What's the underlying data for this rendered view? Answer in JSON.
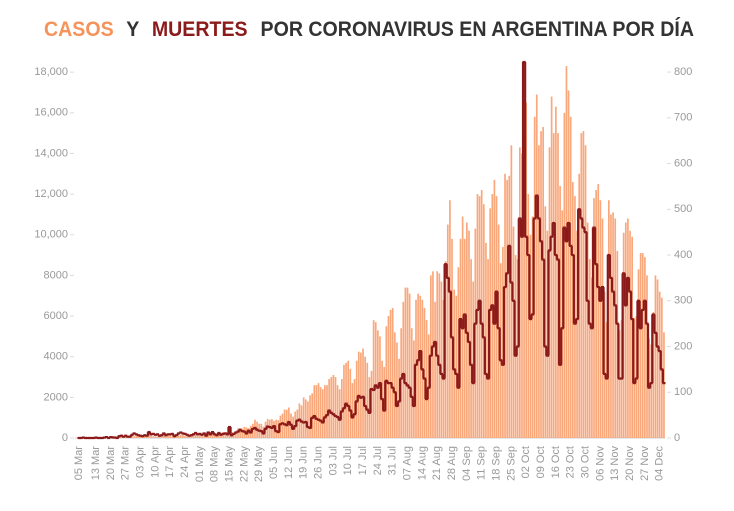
{
  "chart_data": {
    "type": "bar-step",
    "title": [
      "Y",
      "POR CORONAVIRUS EN ARGENTINA POR DÍA"
    ],
    "categories": [
      "05 Mar",
      null,
      null,
      null,
      null,
      null,
      null,
      null,
      "13 Mar",
      null,
      null,
      null,
      null,
      null,
      null,
      "20 Mar",
      null,
      null,
      null,
      null,
      null,
      null,
      "27 Mar",
      null,
      null,
      null,
      null,
      null,
      null,
      "03 Apr",
      null,
      null,
      null,
      null,
      null,
      null,
      "10 Apr",
      null,
      null,
      null,
      null,
      null,
      null,
      "17 Apr",
      null,
      null,
      null,
      null,
      null,
      null,
      "24 Apr",
      null,
      null,
      null,
      null,
      null,
      null,
      "01 May",
      null,
      null,
      null,
      null,
      null,
      null,
      "08 May",
      null,
      null,
      null,
      null,
      null,
      null,
      "15 May",
      null,
      null,
      null,
      null,
      null,
      null,
      "22 May",
      null,
      null,
      null,
      null,
      null,
      null,
      "29 May",
      null,
      null,
      null,
      null,
      null,
      null,
      "05 Jun",
      null,
      null,
      null,
      null,
      null,
      null,
      "12 Jun",
      null,
      null,
      null,
      null,
      null,
      null,
      "19 Jun",
      null,
      null,
      null,
      null,
      null,
      null,
      "26 Jun",
      null,
      null,
      null,
      null,
      null,
      null,
      "03 Jul",
      null,
      null,
      null,
      null,
      null,
      null,
      "10 Jul",
      null,
      null,
      null,
      null,
      null,
      null,
      "17 Jul",
      null,
      null,
      null,
      null,
      null,
      null,
      "24 Jul",
      null,
      null,
      null,
      null,
      null,
      null,
      "31 Jul",
      null,
      null,
      null,
      null,
      null,
      null,
      "07 Aug",
      null,
      null,
      null,
      null,
      null,
      null,
      "14 Aug",
      null,
      null,
      null,
      null,
      null,
      null,
      "21 Aug",
      null,
      null,
      null,
      null,
      null,
      null,
      "28 Aug",
      null,
      null,
      null,
      null,
      null,
      null,
      "04 Sep",
      null,
      null,
      null,
      null,
      null,
      null,
      "11 Sep",
      null,
      null,
      null,
      null,
      null,
      null,
      "18 Sep",
      null,
      null,
      null,
      null,
      null,
      null,
      "25 Sep",
      null,
      null,
      null,
      null,
      null,
      null,
      "02 Oct",
      null,
      null,
      null,
      null,
      null,
      null,
      "09 Oct",
      null,
      null,
      null,
      null,
      null,
      null,
      "16 Oct",
      null,
      null,
      null,
      null,
      null,
      null,
      "23 Oct",
      null,
      null,
      null,
      null,
      null,
      null,
      "30 Oct",
      null,
      null,
      null,
      null,
      null,
      null,
      "06 Nov",
      null,
      null,
      null,
      null,
      null,
      null,
      "13 Nov",
      null,
      null,
      null,
      null,
      null,
      null,
      "20 Nov",
      null,
      null,
      null,
      null,
      null,
      null,
      "27 Nov",
      null,
      null,
      null,
      null,
      null,
      null,
      "04 Dec",
      null,
      null
    ],
    "series": [
      {
        "name": "CASOS",
        "color": "#f9a87c",
        "title_color": "#f5935b",
        "values": [
          1,
          0,
          2,
          2,
          3,
          5,
          4,
          10,
          5,
          12,
          11,
          20,
          14,
          18,
          31,
          30,
          97,
          67,
          41,
          86,
          87,
          101,
          55,
          75,
          95,
          146,
          88,
          117,
          132,
          105,
          80,
          98,
          60,
          150,
          114,
          90,
          80,
          81,
          100,
          83,
          114,
          85,
          124,
          145,
          85,
          77,
          67,
          121,
          144,
          160,
          120,
          100,
          120,
          110,
          130,
          166,
          119,
          143,
          150,
          100,
          130,
          180,
          240,
          200,
          180,
          170,
          160,
          230,
          290,
          280,
          300,
          345,
          300,
          250,
          330,
          470,
          480,
          460,
          550,
          520,
          480,
          600,
          700,
          900,
          800,
          700,
          700,
          560,
          800,
          930,
          900,
          930,
          840,
          900,
          880,
          1100,
          1200,
          1400,
          1390,
          1500,
          1200,
          1050,
          1300,
          1400,
          1700,
          1600,
          2000,
          1900,
          1800,
          2100,
          2200,
          2600,
          2600,
          2700,
          2500,
          2400,
          2600,
          2600,
          2900,
          3000,
          3100,
          3000,
          2600,
          2400,
          2900,
          3600,
          3700,
          3800,
          3400,
          2700,
          2900,
          3800,
          4250,
          4200,
          4400,
          4000,
          3700,
          3000,
          3300,
          5800,
          5700,
          5300,
          5000,
          3800,
          3500,
          5500,
          6000,
          6300,
          6400,
          5200,
          4700,
          3900,
          5400,
          6700,
          7400,
          7400,
          7100,
          5400,
          4800,
          6800,
          7100,
          7000,
          6800,
          6400,
          5800,
          5100,
          8000,
          8200,
          6700,
          8200,
          8100,
          7700,
          6800,
          8700,
          10500,
          11700,
          9800,
          7300,
          7000,
          8400,
          9800,
          10900,
          9800,
          10600,
          10200,
          8800,
          7700,
          10300,
          12000,
          11900,
          12200,
          11500,
          9600,
          8800,
          11300,
          12000,
          12700,
          11900,
          10500,
          8600,
          9400,
          13000,
          12700,
          12900,
          14400,
          10400,
          9000,
          8800,
          14300,
          14000,
          14900,
          16500,
          12000,
          10000,
          10900,
          15800,
          16900,
          14400,
          15100,
          15300,
          11400,
          10200,
          14300,
          16800,
          15000,
          16300,
          15000,
          12400,
          11200,
          16000,
          18300,
          17100,
          15800,
          12600,
          11900,
          10200,
          13000,
          15000,
          15100,
          14400,
          10600,
          8800,
          7900,
          11800,
          12200,
          12500,
          11700,
          10800,
          7200,
          5700,
          11700,
          11000,
          11100,
          10800,
          9200,
          5300,
          5800,
          10100,
          10600,
          10800,
          10200,
          9900,
          5900,
          6000,
          8300,
          9100,
          9100,
          8900,
          8000,
          4900,
          4600,
          6200,
          8000,
          7800,
          7200,
          6900,
          5200
        ]
      },
      {
        "name": "MUERTES",
        "color": "#8b1a1a",
        "axis": "y2",
        "values": [
          0,
          0,
          1,
          0,
          0,
          0,
          0,
          0,
          1,
          0,
          0,
          0,
          1,
          2,
          0,
          2,
          1,
          1,
          0,
          4,
          5,
          3,
          5,
          3,
          3,
          7,
          10,
          8,
          6,
          5,
          4,
          6,
          5,
          13,
          8,
          9,
          7,
          8,
          5,
          6,
          10,
          6,
          8,
          8,
          9,
          4,
          6,
          10,
          12,
          10,
          9,
          7,
          5,
          6,
          8,
          11,
          8,
          9,
          7,
          10,
          5,
          12,
          8,
          13,
          8,
          6,
          11,
          7,
          9,
          10,
          8,
          24,
          6,
          9,
          12,
          14,
          18,
          15,
          14,
          10,
          16,
          12,
          20,
          22,
          18,
          16,
          15,
          10,
          20,
          25,
          24,
          22,
          26,
          15,
          13,
          30,
          32,
          30,
          28,
          35,
          29,
          20,
          26,
          38,
          40,
          36,
          34,
          35,
          24,
          22,
          44,
          48,
          42,
          40,
          38,
          34,
          45,
          50,
          60,
          55,
          52,
          48,
          46,
          40,
          58,
          65,
          75,
          70,
          60,
          45,
          52,
          80,
          92,
          88,
          90,
          70,
          62,
          55,
          107,
          105,
          115,
          110,
          120,
          85,
          60,
          125,
          120,
          120,
          110,
          100,
          70,
          80,
          130,
          140,
          120,
          115,
          110,
          90,
          70,
          160,
          170,
          190,
          150,
          130,
          85,
          110,
          180,
          200,
          210,
          180,
          160,
          140,
          130,
          380,
          350,
          320,
          220,
          150,
          140,
          110,
          260,
          240,
          270,
          230,
          210,
          160,
          120,
          250,
          280,
          300,
          250,
          220,
          140,
          130,
          280,
          290,
          250,
          320,
          240,
          170,
          160,
          330,
          360,
          420,
          340,
          300,
          180,
          200,
          480,
          440,
          822,
          440,
          400,
          260,
          270,
          480,
          530,
          480,
          430,
          390,
          200,
          180,
          410,
          440,
          470,
          400,
          390,
          160,
          240,
          460,
          430,
          470,
          420,
          400,
          250,
          260,
          500,
          480,
          460,
          450,
          300,
          250,
          240,
          460,
          380,
          330,
          300,
          330,
          140,
          130,
          400,
          350,
          320,
          290,
          250,
          130,
          130,
          360,
          290,
          350,
          320,
          260,
          120,
          130,
          300,
          240,
          280,
          300,
          250,
          110,
          120,
          270,
          230,
          200,
          190,
          150,
          120
        ]
      }
    ],
    "ylim": [
      0,
      18500
    ],
    "yticks": [
      0,
      2000,
      4000,
      6000,
      8000,
      {
        "value": 10000,
        "label": "10,000"
      },
      {
        "value": 12000,
        "label": "12,000"
      },
      {
        "value": 14000,
        "label": "14,000"
      },
      {
        "value": 16000,
        "label": "16,000"
      },
      {
        "value": 18000,
        "label": "18,000"
      }
    ],
    "y2lim": [
      0,
      822
    ],
    "y2ticks": [
      0,
      100,
      200,
      300,
      400,
      500,
      600,
      700,
      800
    ],
    "title_text_color": "#333333"
  }
}
